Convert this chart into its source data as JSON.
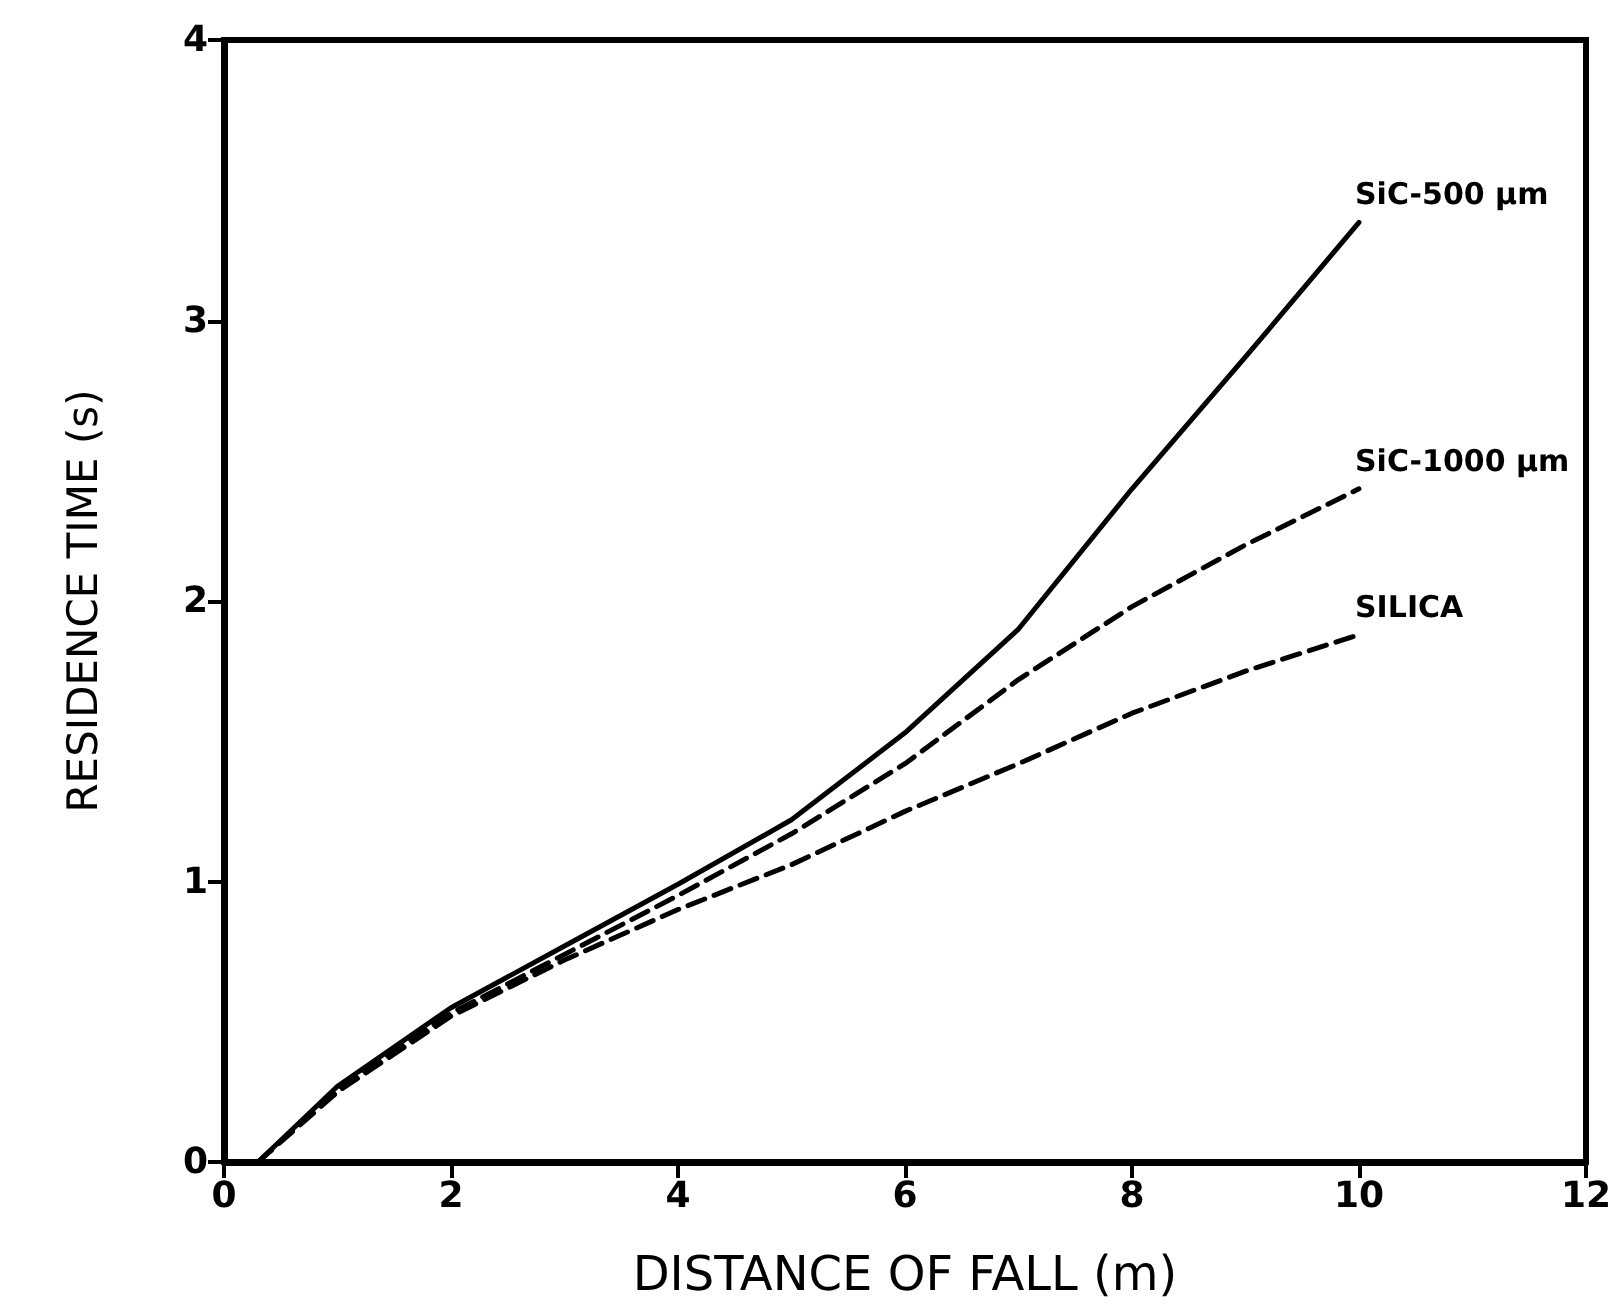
{
  "chart_data": {
    "type": "line",
    "xlabel": "DISTANCE OF FALL (m)",
    "ylabel": "RESIDENCE TIME (s)",
    "xlim": [
      0,
      12
    ],
    "xticks": [
      0,
      2,
      4,
      6,
      8,
      10,
      12
    ],
    "ylim": [
      0,
      4
    ],
    "yticks": [
      0,
      1,
      2,
      3,
      4
    ],
    "grid": false,
    "legend": false,
    "marker": "none",
    "series": [
      {
        "name": "SiC-500 μm",
        "color": "#000000",
        "line_style": "solid",
        "x": [
          0.3,
          1,
          2,
          3,
          4,
          5,
          6,
          7,
          8,
          9,
          10
        ],
        "values": [
          0,
          0.27,
          0.55,
          0.77,
          0.99,
          1.22,
          1.53,
          1.9,
          2.4,
          2.87,
          3.35
        ]
      },
      {
        "name": "SiC-1000 μm",
        "color": "#000000",
        "line_style": "dashed",
        "x": [
          0.3,
          1,
          2,
          3,
          4,
          5,
          6,
          7,
          8,
          9,
          10
        ],
        "values": [
          0,
          0.26,
          0.53,
          0.74,
          0.95,
          1.17,
          1.42,
          1.72,
          1.98,
          2.2,
          2.4
        ]
      },
      {
        "name": "SILICA",
        "color": "#000000",
        "line_style": "dashed",
        "x": [
          0.3,
          1,
          2,
          3,
          4,
          5,
          6,
          7,
          8,
          9,
          10
        ],
        "values": [
          0,
          0.25,
          0.52,
          0.72,
          0.9,
          1.06,
          1.25,
          1.42,
          1.6,
          1.75,
          1.88
        ]
      }
    ]
  }
}
